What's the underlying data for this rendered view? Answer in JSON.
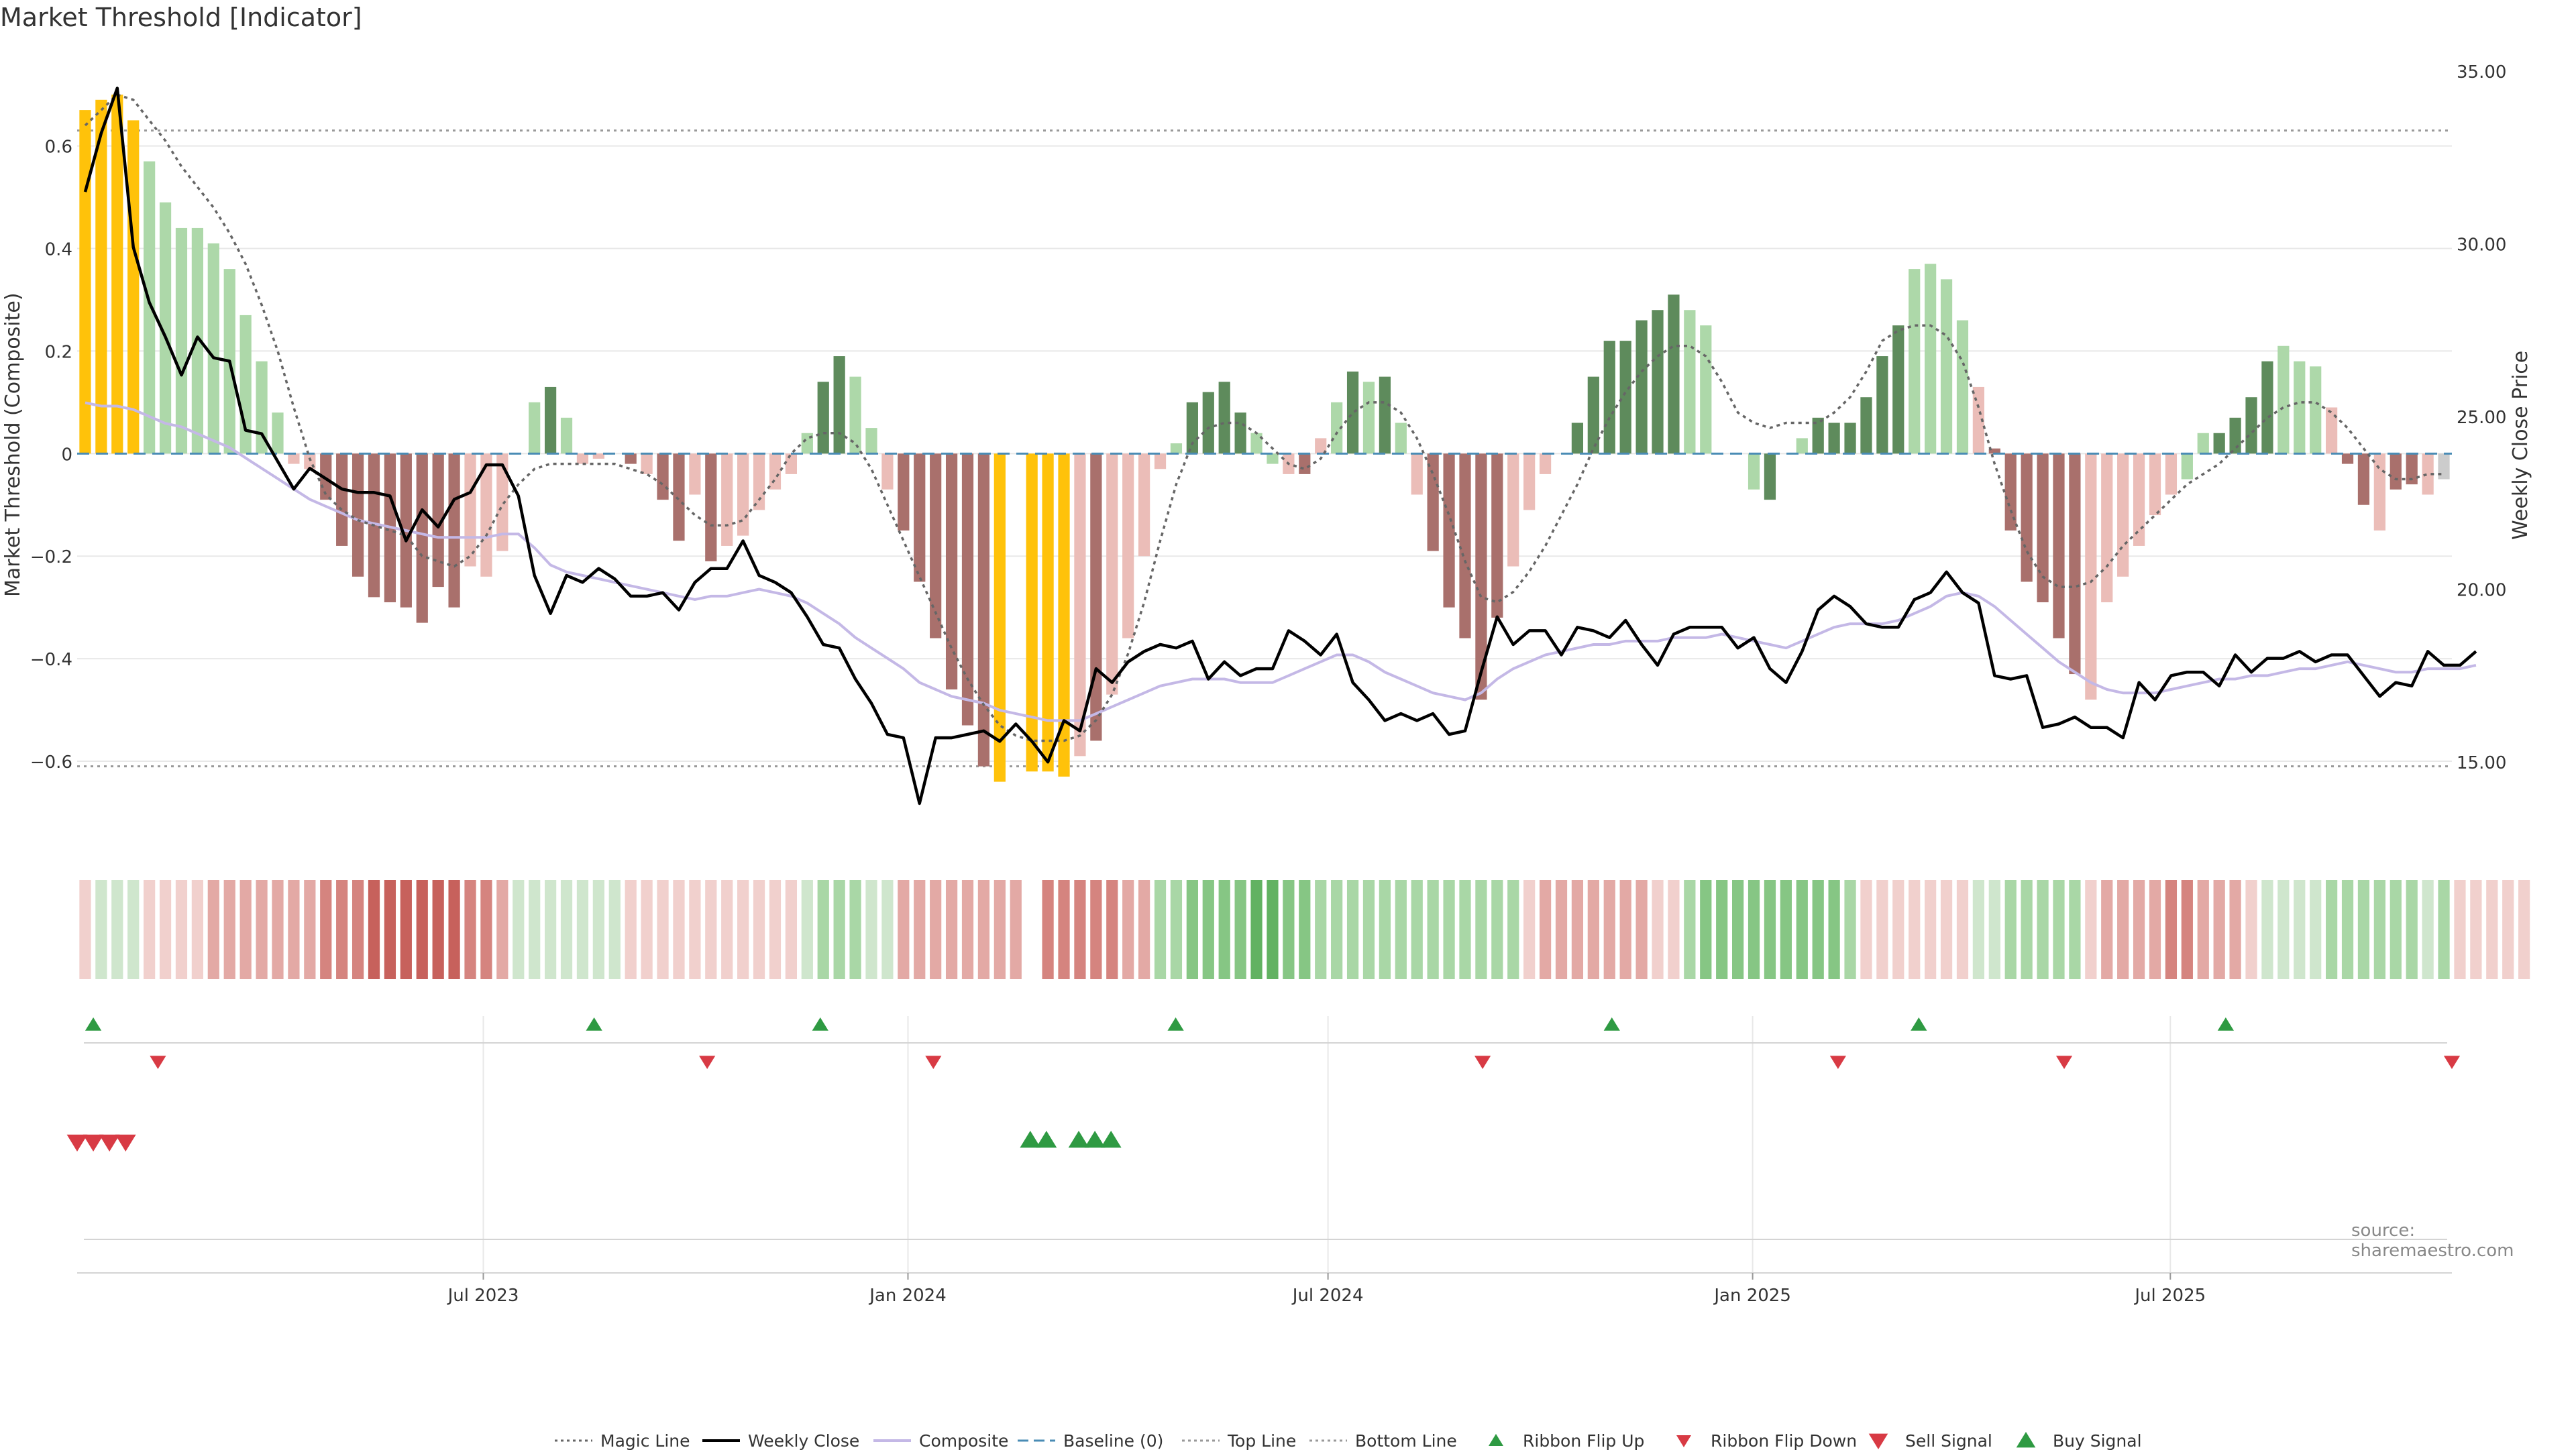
{
  "title": "Market Threshold [Indicator]",
  "source": "source: sharemaestro.com",
  "colors": {
    "gold": "#FFC20A",
    "dark_green": "#5E8B5C",
    "light_green": "#ADD8A9",
    "dark_red": "#A9706C",
    "light_red": "#EBBDB8",
    "close": "#000000",
    "composite": "#C4B8E6",
    "magic": "#666666",
    "baseline": "#4A8CB5",
    "grid": "#E8E8E8",
    "buy": "#2E9A42",
    "sell": "#D83A44"
  },
  "legend": [
    {
      "label": "Magic Line",
      "kind": "dotted",
      "color": "#666666"
    },
    {
      "label": "Weekly Close",
      "kind": "solid",
      "color": "#000000"
    },
    {
      "label": "Composite",
      "kind": "solid",
      "color": "#C4B8E6"
    },
    {
      "label": "Baseline (0)",
      "kind": "dashed",
      "color": "#4A8CB5"
    },
    {
      "label": "Top Line",
      "kind": "dotted",
      "color": "#999999"
    },
    {
      "label": "Bottom Line",
      "kind": "dotted",
      "color": "#999999"
    },
    {
      "label": "Ribbon Flip Up",
      "kind": "tri-up",
      "color": "#2E9A42"
    },
    {
      "label": "Ribbon Flip Down",
      "kind": "tri-down",
      "color": "#D83A44"
    },
    {
      "label": "Sell Signal",
      "kind": "tri-down-big",
      "color": "#D83A44"
    },
    {
      "label": "Buy Signal",
      "kind": "tri-up-big",
      "color": "#2E9A42"
    }
  ],
  "chart_data": {
    "type": "bar",
    "title": "Market Threshold [Indicator]",
    "ylabel": "Market Threshold (Composite)",
    "y2label": "Weekly Close Price",
    "ylim": [
      -0.77,
      0.78
    ],
    "y2lim": [
      12.5,
      35.5
    ],
    "yticks": [
      0.6,
      0.4,
      0.2,
      0,
      -0.2,
      -0.4,
      -0.6
    ],
    "ytick_labels": [
      "0.6",
      "0.4",
      "0.2",
      "0",
      "−0.2",
      "−0.4",
      "−0.6"
    ],
    "y2ticks": [
      35,
      30,
      25,
      20,
      15
    ],
    "y2tick_labels": [
      "35.00",
      "30.00",
      "25.00",
      "20.00",
      "15.00"
    ],
    "top_line": 0.63,
    "bottom_line": -0.61,
    "x_start": "2023-01-06",
    "x_end": "2025-10-31",
    "xtick_dates": [
      "2023-07-01",
      "2024-01-01",
      "2024-07-01",
      "2025-01-01",
      "2025-07-01"
    ],
    "xtick_labels": [
      "Jul 2023",
      "Jan 2024",
      "Jul 2024",
      "Jan 2025",
      "Jul 2025"
    ],
    "bars": [
      0.67,
      0.69,
      0.7,
      0.65,
      0.57,
      0.49,
      0.44,
      0.44,
      0.41,
      0.36,
      0.27,
      0.18,
      0.08,
      -0.02,
      -0.03,
      -0.09,
      -0.18,
      -0.24,
      -0.28,
      -0.29,
      -0.3,
      -0.33,
      -0.26,
      -0.3,
      -0.22,
      -0.24,
      -0.19,
      0.0,
      0.1,
      0.13,
      0.07,
      -0.02,
      -0.01,
      0.0,
      -0.02,
      -0.04,
      -0.09,
      -0.17,
      -0.08,
      -0.21,
      -0.18,
      -0.16,
      -0.11,
      -0.07,
      -0.04,
      0.04,
      0.14,
      0.19,
      0.15,
      0.05,
      -0.07,
      -0.15,
      -0.25,
      -0.36,
      -0.46,
      -0.53,
      -0.61,
      -0.64,
      0.0,
      -0.62,
      -0.62,
      -0.63,
      -0.59,
      -0.56,
      -0.47,
      -0.36,
      -0.2,
      -0.03,
      0.02,
      0.1,
      0.12,
      0.14,
      0.08,
      0.04,
      -0.02,
      -0.04,
      -0.04,
      0.03,
      0.1,
      0.16,
      0.14,
      0.15,
      0.06,
      -0.08,
      -0.19,
      -0.3,
      -0.36,
      -0.48,
      -0.32,
      -0.22,
      -0.11,
      -0.04,
      0.0,
      0.06,
      0.15,
      0.22,
      0.22,
      0.26,
      0.28,
      0.31,
      0.28,
      0.25,
      0.0,
      0.0,
      -0.07,
      -0.09,
      0.0,
      0.03,
      0.07,
      0.06,
      0.06,
      0.11,
      0.19,
      0.25,
      0.36,
      0.37,
      0.34,
      0.26,
      0.13,
      0.01,
      -0.15,
      -0.25,
      -0.29,
      -0.36,
      -0.43,
      -0.48,
      -0.29,
      -0.24,
      -0.18,
      -0.12,
      -0.08,
      -0.05,
      0.04,
      0.04,
      0.07,
      0.11,
      0.18,
      0.21,
      0.18,
      0.17,
      0.09,
      -0.02,
      -0.1,
      -0.15,
      -0.07,
      -0.06,
      -0.08,
      -0.05
    ],
    "bar_kinds": [
      "gold",
      "gold",
      "gold",
      "gold",
      "lg",
      "lg",
      "lg",
      "lg",
      "lg",
      "lg",
      "lg",
      "lg",
      "lg",
      "lr",
      "lr",
      "dr",
      "dr",
      "dr",
      "dr",
      "dr",
      "dr",
      "dr",
      "dr",
      "dr",
      "lr",
      "lr",
      "lr",
      "lg",
      "lg",
      "dg",
      "lg",
      "lr",
      "lr",
      "lr",
      "dr",
      "lr",
      "dr",
      "dr",
      "lr",
      "dr",
      "lr",
      "lr",
      "lr",
      "lr",
      "lr",
      "lg",
      "dg",
      "dg",
      "lg",
      "lg",
      "lr",
      "dr",
      "dr",
      "dr",
      "dr",
      "dr",
      "dr",
      "gold",
      "gold",
      "gold",
      "gold",
      "gold",
      "lr",
      "dr",
      "lr",
      "lr",
      "lr",
      "lr",
      "lg",
      "dg",
      "dg",
      "dg",
      "dg",
      "lg",
      "lg",
      "lr",
      "dr",
      "lr",
      "lg",
      "dg",
      "lg",
      "dg",
      "lg",
      "lr",
      "dr",
      "dr",
      "dr",
      "dr",
      "dr",
      "lr",
      "lr",
      "lr",
      "lr",
      "dg",
      "dg",
      "dg",
      "dg",
      "dg",
      "dg",
      "dg",
      "lg",
      "lg",
      "lr",
      "dr",
      "lg",
      "dg",
      "dg",
      "lg",
      "dg",
      "dg",
      "dg",
      "dg",
      "dg",
      "dg",
      "lg",
      "lg",
      "lg",
      "lg",
      "lr",
      "dr",
      "dr",
      "dr",
      "dr",
      "dr",
      "dr",
      "lr",
      "lr",
      "lr",
      "lr",
      "lr",
      "lr",
      "lg",
      "lg",
      "dg",
      "dg",
      "dg",
      "dg",
      "lg",
      "lg",
      "lg",
      "lr",
      "dr",
      "dr",
      "lr",
      "dr",
      "dr",
      "lr"
    ],
    "weekly_close": [
      31.5,
      33.2,
      34.5,
      29.9,
      28.3,
      27.3,
      26.2,
      27.3,
      26.7,
      26.6,
      24.6,
      24.5,
      23.7,
      22.9,
      23.5,
      23.2,
      22.9,
      22.8,
      22.8,
      22.7,
      21.4,
      22.3,
      21.8,
      22.6,
      22.8,
      23.6,
      23.6,
      22.7,
      20.4,
      19.3,
      20.4,
      20.2,
      20.6,
      20.3,
      19.8,
      19.8,
      19.9,
      19.4,
      20.2,
      20.6,
      20.6,
      21.4,
      20.4,
      20.2,
      19.9,
      19.2,
      18.4,
      18.3,
      17.4,
      16.7,
      15.8,
      15.7,
      13.8,
      15.7,
      15.7,
      15.8,
      15.9,
      15.6,
      16.1,
      15.6,
      15.0,
      16.2,
      15.9,
      17.7,
      17.3,
      17.9,
      18.2,
      18.4,
      18.3,
      18.5,
      17.4,
      17.9,
      17.5,
      17.7,
      17.7,
      18.8,
      18.5,
      18.1,
      18.7,
      17.3,
      16.8,
      16.2,
      16.4,
      16.2,
      16.4,
      15.8,
      15.9,
      17.6,
      19.2,
      18.4,
      18.8,
      18.8,
      18.1,
      18.9,
      18.8,
      18.6,
      19.1,
      18.4,
      17.8,
      18.7,
      18.9,
      18.9,
      18.9,
      18.3,
      18.6,
      17.7,
      17.3,
      18.2,
      19.4,
      19.8,
      19.5,
      19.0,
      18.9,
      18.9,
      19.7,
      19.9,
      20.5,
      19.9,
      19.6,
      17.5,
      17.4,
      17.5,
      16.0,
      16.1,
      16.3,
      16.0,
      16.0,
      15.7,
      17.3,
      16.8,
      17.5,
      17.6,
      17.6,
      17.2,
      18.1,
      17.6,
      18.0,
      18.0,
      18.2,
      17.9,
      18.1,
      18.1,
      17.5,
      16.9,
      17.3,
      17.2,
      18.2,
      17.8,
      17.8,
      18.2
    ],
    "composite": [
      25.4,
      25.3,
      25.3,
      25.2,
      25.0,
      24.8,
      24.7,
      24.5,
      24.3,
      24.1,
      23.8,
      23.5,
      23.2,
      22.9,
      22.6,
      22.4,
      22.2,
      22.0,
      21.9,
      21.8,
      21.7,
      21.6,
      21.5,
      21.5,
      21.5,
      21.5,
      21.6,
      21.6,
      21.2,
      20.7,
      20.5,
      20.4,
      20.3,
      20.2,
      20.1,
      20.0,
      19.9,
      19.8,
      19.7,
      19.8,
      19.8,
      19.9,
      20.0,
      19.9,
      19.8,
      19.6,
      19.3,
      19.0,
      18.6,
      18.3,
      18.0,
      17.7,
      17.3,
      17.1,
      16.9,
      16.8,
      16.7,
      16.5,
      16.4,
      16.3,
      16.2,
      16.2,
      16.2,
      16.4,
      16.6,
      16.8,
      17.0,
      17.2,
      17.3,
      17.4,
      17.4,
      17.4,
      17.3,
      17.3,
      17.3,
      17.5,
      17.7,
      17.9,
      18.1,
      18.1,
      17.9,
      17.6,
      17.4,
      17.2,
      17.0,
      16.9,
      16.8,
      17.0,
      17.4,
      17.7,
      17.9,
      18.1,
      18.2,
      18.3,
      18.4,
      18.4,
      18.5,
      18.5,
      18.5,
      18.6,
      18.6,
      18.6,
      18.7,
      18.6,
      18.5,
      18.4,
      18.3,
      18.5,
      18.7,
      18.9,
      19.0,
      19.0,
      19.0,
      19.1,
      19.3,
      19.5,
      19.8,
      19.9,
      19.8,
      19.5,
      19.1,
      18.7,
      18.3,
      17.9,
      17.6,
      17.3,
      17.1,
      17.0,
      17.0,
      17.0,
      17.1,
      17.2,
      17.3,
      17.4,
      17.4,
      17.5,
      17.5,
      17.6,
      17.7,
      17.7,
      17.8,
      17.9,
      17.8,
      17.7,
      17.6,
      17.6,
      17.7,
      17.7,
      17.7,
      17.8
    ],
    "magic_line": [
      0.64,
      0.67,
      0.7,
      0.69,
      0.65,
      0.61,
      0.56,
      0.52,
      0.48,
      0.43,
      0.37,
      0.29,
      0.2,
      0.09,
      -0.01,
      -0.08,
      -0.11,
      -0.13,
      -0.14,
      -0.15,
      -0.16,
      -0.2,
      -0.21,
      -0.22,
      -0.2,
      -0.16,
      -0.1,
      -0.06,
      -0.03,
      -0.02,
      -0.02,
      -0.02,
      -0.02,
      -0.02,
      -0.03,
      -0.04,
      -0.06,
      -0.09,
      -0.12,
      -0.14,
      -0.14,
      -0.13,
      -0.09,
      -0.05,
      0.0,
      0.03,
      0.04,
      0.04,
      0.02,
      -0.03,
      -0.1,
      -0.17,
      -0.24,
      -0.31,
      -0.38,
      -0.44,
      -0.49,
      -0.53,
      -0.55,
      -0.56,
      -0.56,
      -0.56,
      -0.55,
      -0.52,
      -0.47,
      -0.39,
      -0.29,
      -0.17,
      -0.06,
      0.02,
      0.05,
      0.06,
      0.06,
      0.04,
      0.01,
      -0.02,
      -0.03,
      -0.01,
      0.04,
      0.08,
      0.1,
      0.1,
      0.08,
      0.03,
      -0.04,
      -0.12,
      -0.21,
      -0.28,
      -0.29,
      -0.27,
      -0.23,
      -0.18,
      -0.12,
      -0.06,
      0.01,
      0.07,
      0.12,
      0.16,
      0.19,
      0.21,
      0.21,
      0.19,
      0.14,
      0.08,
      0.06,
      0.05,
      0.06,
      0.06,
      0.06,
      0.08,
      0.11,
      0.16,
      0.22,
      0.24,
      0.25,
      0.25,
      0.23,
      0.18,
      0.09,
      -0.02,
      -0.11,
      -0.19,
      -0.24,
      -0.26,
      -0.26,
      -0.25,
      -0.22,
      -0.18,
      -0.15,
      -0.12,
      -0.09,
      -0.06,
      -0.04,
      -0.02,
      0.01,
      0.04,
      0.07,
      0.09,
      0.1,
      0.1,
      0.08,
      0.05,
      0.01,
      -0.03,
      -0.05,
      -0.05,
      -0.04,
      -0.04
    ],
    "ribbon": [
      "lr",
      "lg",
      "lg",
      "lg",
      "lr",
      "lr",
      "lr",
      "lr",
      "r2",
      "r2",
      "r2",
      "r2",
      "r2",
      "r2",
      "r2",
      "r3",
      "r3",
      "r3",
      "r4",
      "r4",
      "r4",
      "r4",
      "r4",
      "r4",
      "r3",
      "r3",
      "r2",
      "lg",
      "lg",
      "lg",
      "lg",
      "lg",
      "lg",
      "lg",
      "lr",
      "lr",
      "lr",
      "lr",
      "lr",
      "lr",
      "lr",
      "lr",
      "lr",
      "lr",
      "lr",
      "lg",
      "g2",
      "g2",
      "g2",
      "lg",
      "lg",
      "r2",
      "r2",
      "r2",
      "r2",
      "r2",
      "r2",
      "r2",
      "r2",
      "",
      "r3",
      "r3",
      "r3",
      "r3",
      "r3",
      "r2",
      "r2",
      "g2",
      "g2",
      "g3",
      "g3",
      "g3",
      "g3",
      "g4",
      "g4",
      "g3",
      "g3",
      "g2",
      "g2",
      "g2",
      "g2",
      "g2",
      "g2",
      "g2",
      "g2",
      "g2",
      "g2",
      "g2",
      "g2",
      "g2",
      "lr",
      "r2",
      "r2",
      "r2",
      "r2",
      "r2",
      "r2",
      "r2",
      "lr",
      "lr",
      "g2",
      "g3",
      "g3",
      "g3",
      "g3",
      "g3",
      "g3",
      "g3",
      "g3",
      "g3",
      "g2",
      "lr",
      "lr",
      "lr",
      "lr",
      "lr",
      "lr",
      "lr",
      "lg",
      "lg",
      "g2",
      "g2",
      "g2",
      "g2",
      "g2",
      "lr",
      "r2",
      "r2",
      "r2",
      "r2",
      "r3",
      "r3",
      "r2",
      "r2",
      "r2",
      "lr",
      "lg",
      "lg",
      "lg",
      "lg",
      "g2",
      "g2",
      "g2",
      "g2",
      "g2",
      "g2",
      "lg",
      "g2",
      "lr",
      "lr",
      "lr",
      "lr",
      "lr"
    ],
    "ribbon_colors": {
      "lg": "#CFE6CD",
      "g2": "#A9D7A6",
      "g3": "#86C684",
      "g4": "#62B262",
      "lr": "#F1D0CD",
      "r2": "#E3A9A5",
      "r3": "#D5847F",
      "r4": "#C7615C"
    },
    "flip_up_dates": [
      "2023-01-13",
      "2023-08-18",
      "2023-11-24",
      "2024-04-26",
      "2024-11-01",
      "2025-03-14",
      "2025-07-25"
    ],
    "flip_down_dates": [
      "2023-02-10",
      "2023-10-06",
      "2024-01-12",
      "2024-09-06",
      "2025-02-07",
      "2025-05-16",
      "2025-10-31"
    ],
    "sell_signal_dates": [
      "2023-01-06",
      "2023-01-13",
      "2023-01-20",
      "2023-01-27"
    ],
    "buy_signal_dates": [
      "2024-02-23",
      "2024-03-01",
      "2024-03-15",
      "2024-03-22",
      "2024-03-29"
    ]
  }
}
